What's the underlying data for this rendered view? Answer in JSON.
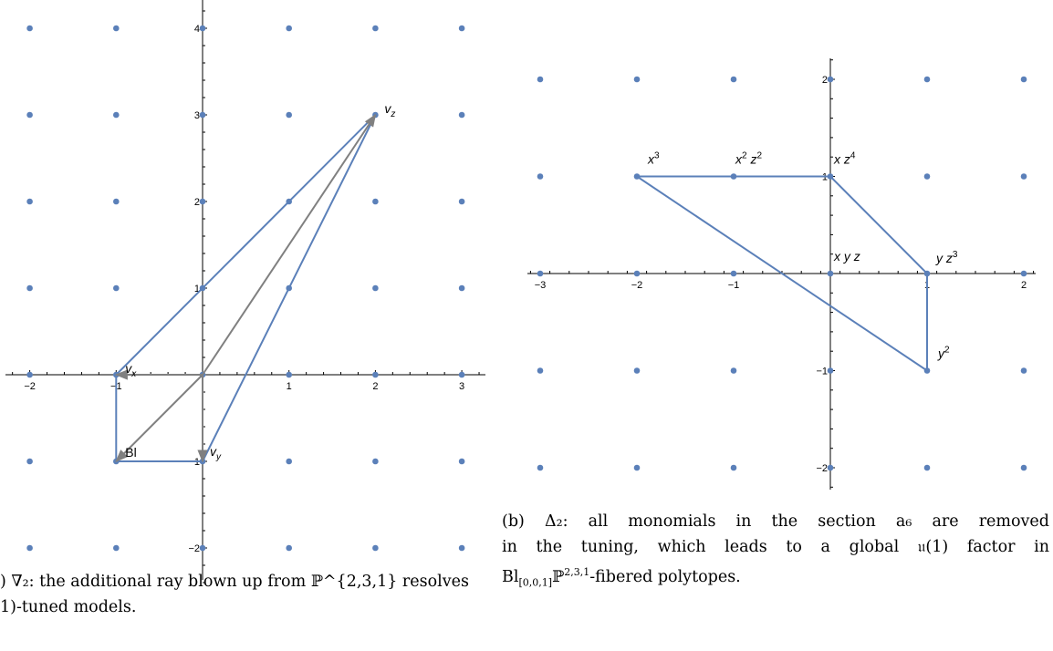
{
  "figure_a": {
    "caption": ") ∇₂: the additional ray blown up from ℙ²·³·¹ resolves\n1)-tuned models.",
    "caption_line1": ") ∇₂: the additional ray blown up from ℙ^{2,3,1} resolves",
    "caption_line2": "1)-tuned models.",
    "chart_data": {
      "type": "scatter",
      "x_ticks": [
        "-2",
        "-1",
        "1",
        "2",
        "3"
      ],
      "y_ticks": [
        "-2",
        "-1",
        "1",
        "2",
        "3",
        "4"
      ],
      "xlim": [
        -2,
        3
      ],
      "ylim": [
        -2,
        4
      ],
      "lattice_x": [
        -2,
        -1,
        0,
        1,
        2,
        3
      ],
      "lattice_y": [
        -2,
        -1,
        0,
        1,
        2,
        3,
        4
      ],
      "polygon": [
        [
          -1,
          0
        ],
        [
          2,
          3
        ],
        [
          0,
          -1
        ],
        [
          -1,
          -1
        ]
      ],
      "polygon_edges_x_points": [
        [
          -1,
          0
        ],
        [
          0,
          1
        ],
        [
          1,
          2
        ],
        [
          2,
          3
        ]
      ],
      "rays": [
        {
          "label": "v_x",
          "to": [
            -1,
            0
          ]
        },
        {
          "label": "v_y",
          "to": [
            0,
            -1
          ]
        },
        {
          "label": "v_z",
          "to": [
            2,
            3
          ]
        },
        {
          "label": "Bl",
          "to": [
            -1,
            -1
          ]
        }
      ],
      "labels": {
        "vx": "v",
        "vx_sub": "x",
        "vy": "v",
        "vy_sub": "y",
        "vz": "v",
        "vz_sub": "z",
        "bl": "Bl"
      }
    }
  },
  "figure_b": {
    "caption_prefix": "(b) Δ₂: all monomials in the section a₆ are removed in the tuning, which leads to a global 𝔲(1) factor in Bl",
    "caption_line1": "(b) Δ₂: all monomials in the section a₆ are removed",
    "caption_line2": "in the tuning, which leads to a global 𝔲(1) factor in",
    "caption_line3_a": "Bl",
    "caption_line3_sub": "[0,0,1]",
    "caption_line3_b": "ℙ",
    "caption_line3_sup": "2,3,1",
    "caption_line3_c": "-fibered polytopes.",
    "chart_data": {
      "type": "scatter",
      "x_ticks": [
        "-3",
        "-2",
        "-1",
        "1",
        "2"
      ],
      "y_ticks": [
        "-2",
        "-1",
        "1",
        "2"
      ],
      "xlim": [
        -3,
        2
      ],
      "ylim": [
        -2,
        2
      ],
      "lattice_x": [
        -3,
        -2,
        -1,
        0,
        1,
        2
      ],
      "lattice_y": [
        -2,
        -1,
        0,
        1,
        2
      ],
      "polygon": [
        [
          -2,
          1
        ],
        [
          0,
          1
        ],
        [
          1,
          0
        ],
        [
          1,
          -1
        ]
      ],
      "monomials": [
        {
          "at": [
            -2,
            1
          ],
          "text": "x",
          "sup": "3"
        },
        {
          "at": [
            -1,
            1
          ],
          "text": "x",
          "sup": "2",
          "text2": " z",
          "sup2": "2"
        },
        {
          "at": [
            0,
            1
          ],
          "text": "x z",
          "sup": "4"
        },
        {
          "at": [
            0,
            0
          ],
          "text": "x y z"
        },
        {
          "at": [
            1,
            0
          ],
          "text": "y z",
          "sup": "3"
        },
        {
          "at": [
            1,
            -1
          ],
          "text": "y",
          "sup": "2"
        }
      ]
    }
  },
  "colors": {
    "polygon": "#5b80b9",
    "points": "#5b80b9",
    "rays": "#808080",
    "axes": "#000000"
  }
}
